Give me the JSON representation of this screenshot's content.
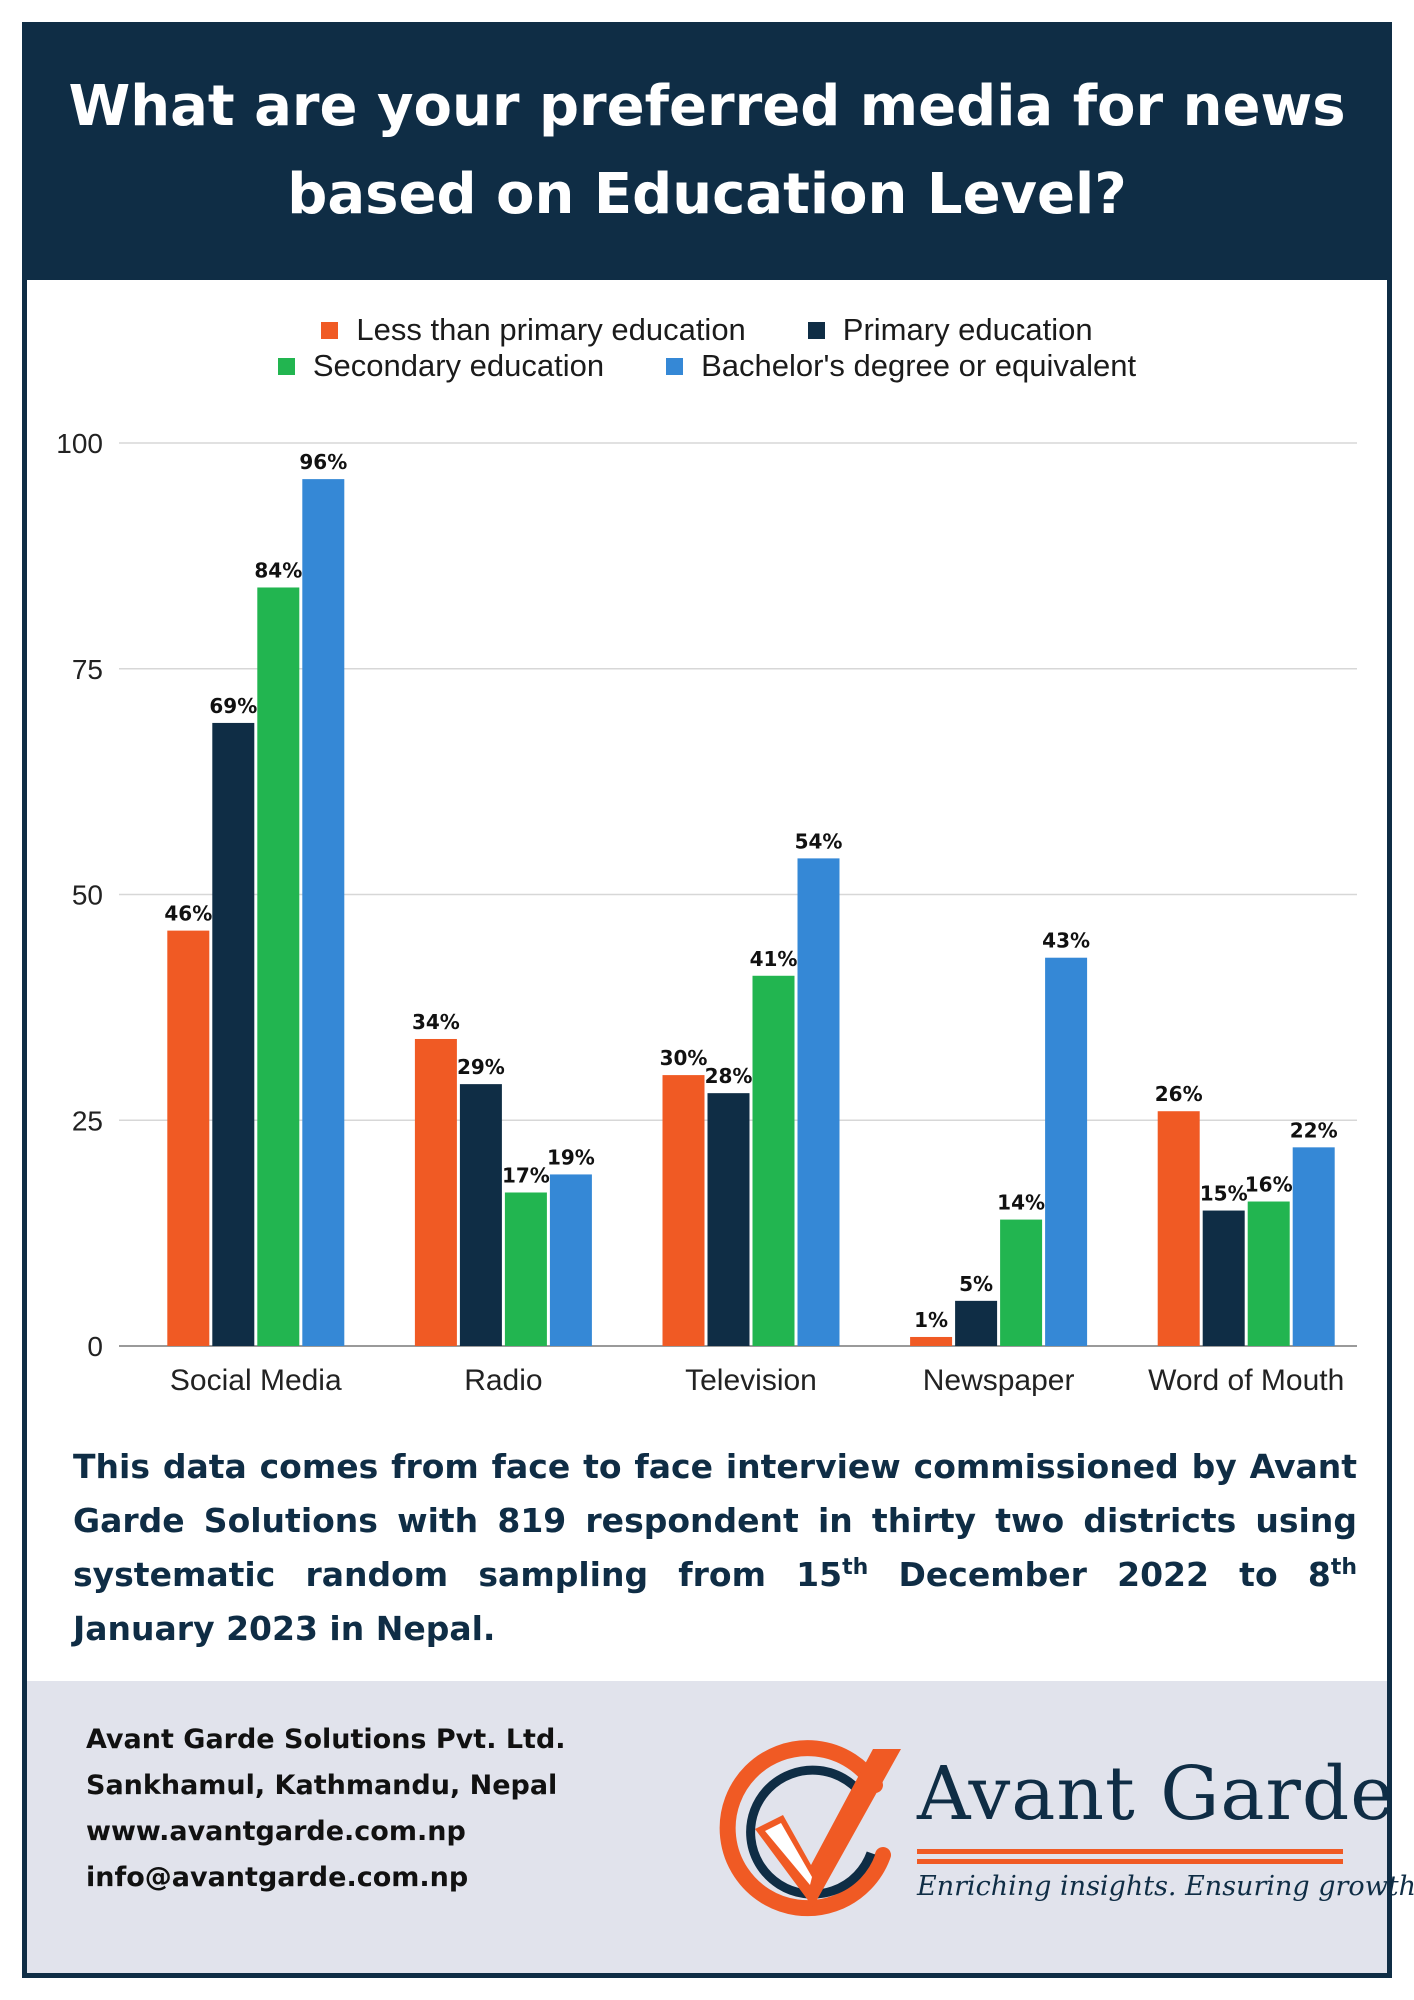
{
  "title": "What are your preferred media for news based on Education Level?",
  "chart_data": {
    "type": "bar",
    "categories": [
      "Social Media",
      "Radio",
      "Television",
      "Newspaper",
      "Word of Mouth"
    ],
    "series": [
      {
        "name": "Less than primary education",
        "color": "#f05a24",
        "values": [
          46,
          34,
          30,
          1,
          26
        ],
        "labels": [
          "46%",
          "34%",
          "30%",
          "1%",
          "26%"
        ]
      },
      {
        "name": "Primary education",
        "color": "#0f2d45",
        "values": [
          69,
          29,
          28,
          5,
          15
        ],
        "labels": [
          "69%",
          "29%",
          "28%",
          "5%",
          "15%"
        ]
      },
      {
        "name": "Secondary education",
        "color": "#22b550",
        "values": [
          84,
          17,
          41,
          14,
          16
        ],
        "labels": [
          "84%",
          "17%",
          "41%",
          "14%",
          "16%"
        ]
      },
      {
        "name": "Bachelor's degree or equivalent",
        "color": "#3588d6",
        "values": [
          96,
          19,
          54,
          43,
          22
        ],
        "labels": [
          "96%",
          "19%",
          "54%",
          "43%",
          "22%"
        ]
      }
    ],
    "yticks": [
      "0",
      "25",
      "50",
      "75",
      "100"
    ],
    "ylim": [
      0,
      100
    ],
    "grid": true,
    "legend_position": "top"
  },
  "footnote": {
    "part1": "This data comes from face to face interview commissioned by Avant Garde Solutions with 819 respondent in thirty two districts using systematic random sampling from 15",
    "sup1": "th",
    "part2": " December 2022 to 8",
    "sup2": "th",
    "part3": " January 2023 in Nepal."
  },
  "footer": {
    "company": "Avant Garde Solutions Pvt. Ltd.",
    "address": "Sankhamul, Kathmandu, Nepal",
    "website": "www.avantgarde.com.np",
    "email": "info@avantgarde.com.np"
  },
  "logo": {
    "name": "Avant Garde",
    "tagline": "Enriching insights. Ensuring growth."
  },
  "colors": {
    "navy": "#0f2d45",
    "orange": "#f05a24",
    "green": "#22b550",
    "blue": "#3588d6",
    "footer_bg": "#e1e3ec"
  }
}
